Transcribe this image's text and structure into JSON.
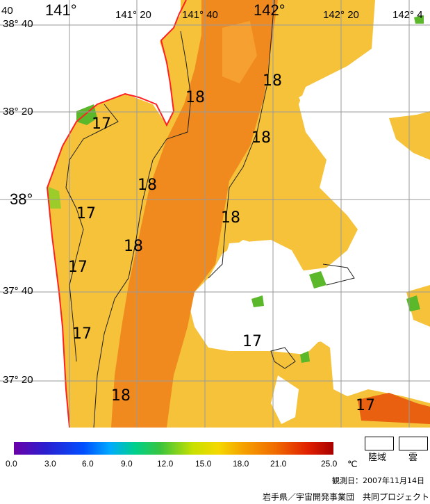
{
  "map": {
    "lon_labels": [
      "141°",
      "141° 20",
      "141° 40",
      "142°",
      "142° 20",
      "142° 4"
    ],
    "lat_labels": [
      "38° 40",
      "38° 20",
      "38°",
      "37° 40",
      "37° 20"
    ],
    "corner_label": "40",
    "isotherm_labels": [
      "18",
      "18",
      "18",
      "18",
      "18",
      "18",
      "17",
      "17",
      "17",
      "17",
      "17",
      "17"
    ]
  },
  "colorbar": {
    "ticks": [
      "0.0",
      "3.0",
      "6.0",
      "9.0",
      "12.0",
      "15.0",
      "18.0",
      "21.0",
      "25.0"
    ],
    "unit": "℃",
    "colors": [
      "#6a00a8",
      "#0050ff",
      "#00d08a",
      "#3cc43c",
      "#f5d800",
      "#f06a00",
      "#a80000"
    ]
  },
  "legend": {
    "land_label": "陸域",
    "cloud_label": "雲"
  },
  "footer": {
    "observation_date": "観測日：2007年11月14日",
    "credit": "岩手県／宇宙開発事業団　共同プロジェクト"
  }
}
